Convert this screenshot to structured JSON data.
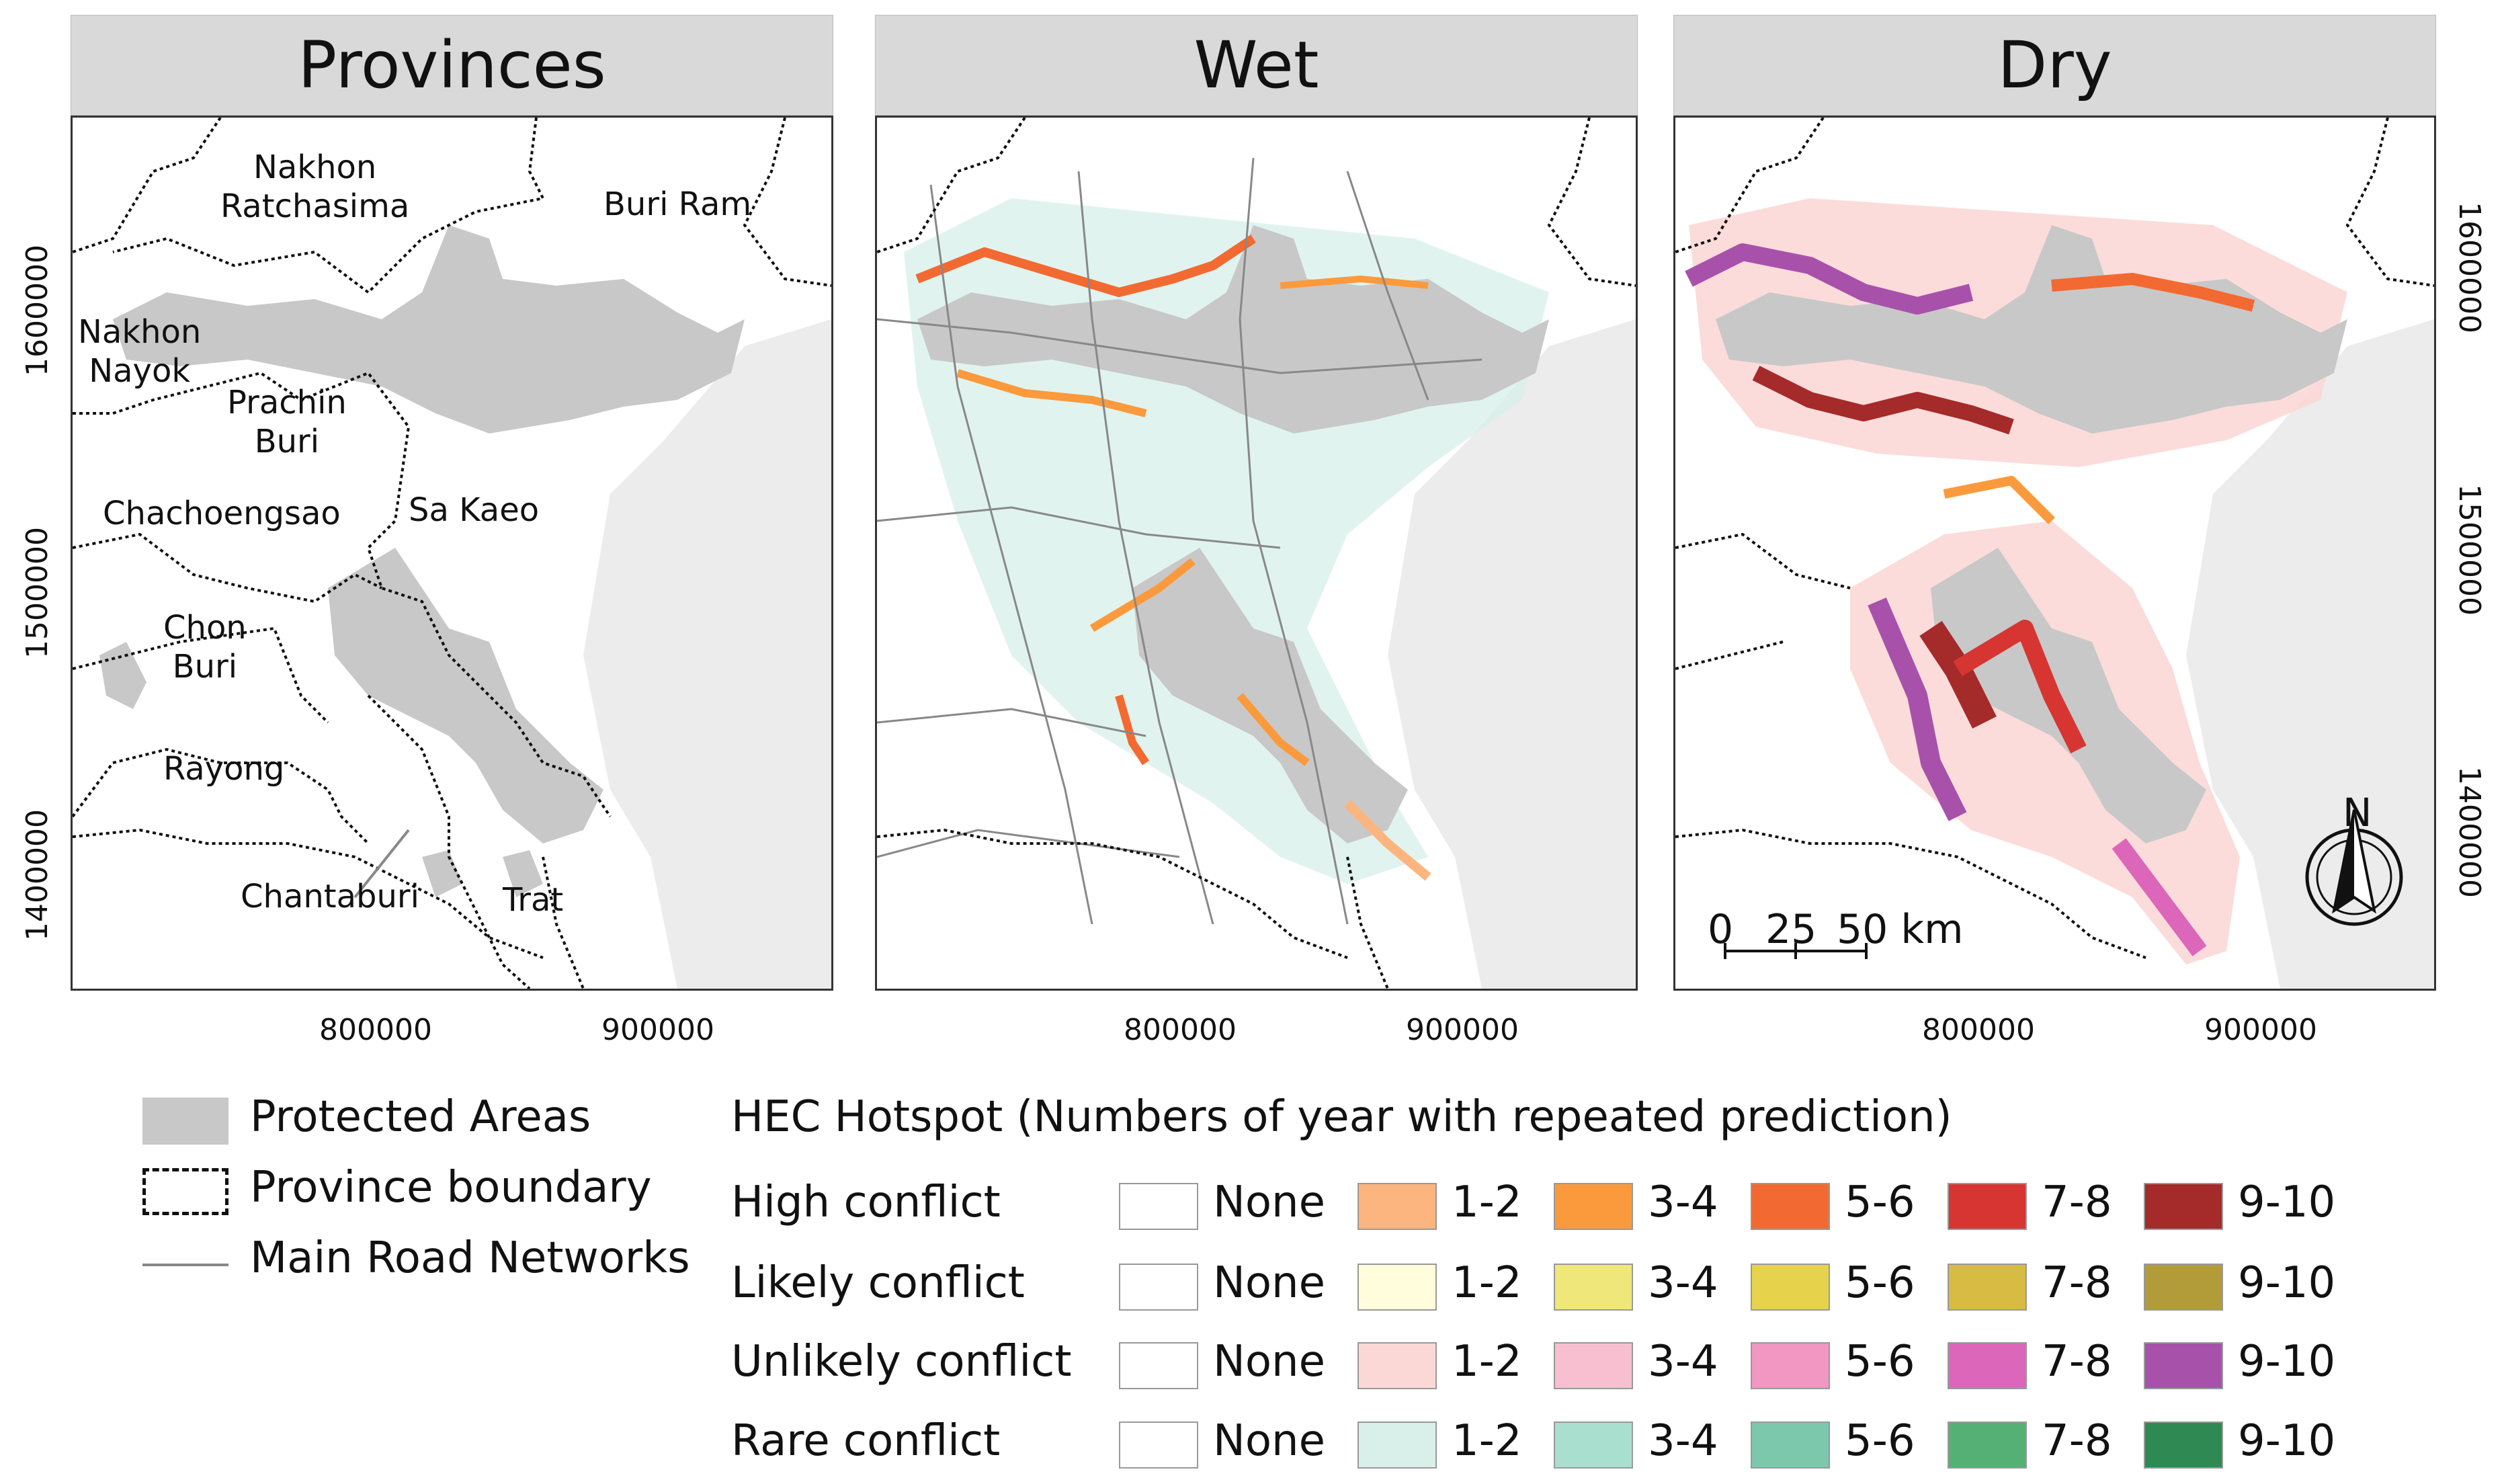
{
  "panels": [
    {
      "title": "Provinces"
    },
    {
      "title": "Wet"
    },
    {
      "title": "Dry"
    }
  ],
  "axes": {
    "x_ticks": [
      "800000",
      "900000"
    ],
    "y_ticks": [
      "1600000",
      "1500000",
      "1400000"
    ]
  },
  "provinces": [
    {
      "name": "Nakhon\nRatchasima"
    },
    {
      "name": "Buri Ram"
    },
    {
      "name": "Nakhon\nNayok"
    },
    {
      "name": "Prachin\nBuri"
    },
    {
      "name": "Chachoengsao"
    },
    {
      "name": "Sa Kaeo"
    },
    {
      "name": "Chon\nBuri"
    },
    {
      "name": "Rayong"
    },
    {
      "name": "Chantaburi"
    },
    {
      "name": "Trat"
    }
  ],
  "map_extras": {
    "north_label": "N",
    "scale_bar": {
      "labels": [
        "0",
        "25",
        "50 km"
      ]
    }
  },
  "legend": {
    "base": [
      {
        "label": "Protected Areas"
      },
      {
        "label": "Province boundary"
      },
      {
        "label": "Main Road Networks"
      }
    ],
    "hotspot_title": "HEC Hotspot (Numbers of year with repeated prediction)",
    "classes": [
      "None",
      "1-2",
      "3-4",
      "5-6",
      "7-8",
      "9-10"
    ],
    "rows": [
      {
        "label": "High conflict",
        "colors": [
          "#ffffff",
          "#fdb57f",
          "#fb9a3c",
          "#f26a31",
          "#d73532",
          "#a52a2a"
        ]
      },
      {
        "label": "Likely conflict",
        "colors": [
          "#ffffff",
          "#fffddc",
          "#efe77a",
          "#e7d34b",
          "#d8bb42",
          "#b29c3a"
        ]
      },
      {
        "label": "Unlikely conflict",
        "colors": [
          "#ffffff",
          "#fbd8d6",
          "#f7bfcf",
          "#f197c2",
          "#dc66ba",
          "#a851ab"
        ]
      },
      {
        "label": "Rare conflict",
        "colors": [
          "#ffffff",
          "#d9f0ea",
          "#a9dfce",
          "#7cc8ad",
          "#55b076",
          "#2e8a52"
        ]
      }
    ]
  }
}
